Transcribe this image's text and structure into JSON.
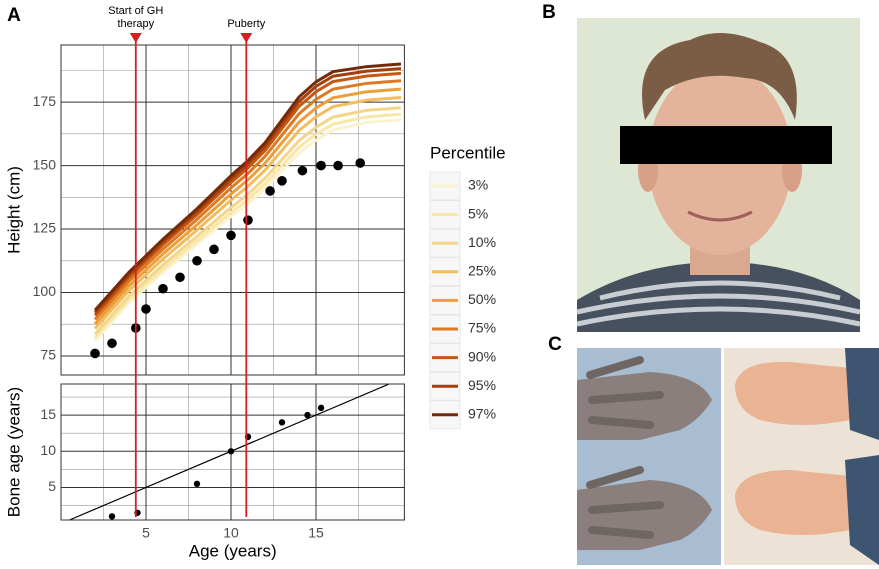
{
  "panel_labels": [
    "A",
    "B",
    "C"
  ],
  "chart_data": [
    {
      "type": "line",
      "ylabel": "Height (cm)",
      "xlim": [
        0,
        20.2
      ],
      "ylim": [
        67.5,
        197.5
      ],
      "xticks": [
        5,
        10,
        15
      ],
      "yticks": [
        75,
        100,
        125,
        150,
        175
      ],
      "grid": true,
      "legend": {
        "title": "Percentile",
        "position": "right"
      },
      "x": [
        2,
        4,
        6,
        8,
        10,
        11,
        12,
        13,
        14,
        15,
        16,
        18,
        20
      ],
      "series": [
        {
          "name": "3%",
          "color": "#fbf3cf",
          "values": [
            81,
            96,
            108,
            119,
            130,
            135,
            141,
            148,
            155,
            160,
            164,
            167,
            168
          ]
        },
        {
          "name": "5%",
          "color": "#f8e7a6",
          "values": [
            82.2,
            97.2,
            109.3,
            120.4,
            131.6,
            136.7,
            142.8,
            150,
            157.2,
            162.3,
            166.3,
            169.2,
            170.2
          ]
        },
        {
          "name": "10%",
          "color": "#f4d68a",
          "values": [
            83.6,
            98.6,
            110.9,
            122.1,
            133.5,
            138.7,
            145,
            152.4,
            159.8,
            165.1,
            169.1,
            171.8,
            172.8
          ]
        },
        {
          "name": "25%",
          "color": "#f3bd5e",
          "values": [
            85.8,
            100.8,
            113.2,
            124.6,
            136.4,
            141.8,
            148.2,
            156,
            163.8,
            169.2,
            173.2,
            175.8,
            176.8
          ]
        },
        {
          "name": "50%",
          "color": "#ec9e3a",
          "values": [
            87.6,
            102.6,
            115.2,
            126.7,
            138.8,
            144.4,
            150.9,
            159,
            167.1,
            172.7,
            176.7,
            179.1,
            180.1
          ]
        },
        {
          "name": "75%",
          "color": "#df7a22",
          "values": [
            89.4,
            104.4,
            117.1,
            128.8,
            141.2,
            146.9,
            153.6,
            162,
            170.4,
            176.1,
            180.1,
            182.4,
            183.4
          ]
        },
        {
          "name": "90%",
          "color": "#c65912",
          "values": [
            91,
            106,
            118.8,
            130.6,
            143.3,
            149.1,
            155.9,
            164.6,
            173.3,
            179.1,
            183.1,
            185.3,
            186.3
          ]
        },
        {
          "name": "95%",
          "color": "#a3400c",
          "values": [
            92,
            107,
            120,
            131.9,
            144.7,
            150.6,
            157.6,
            166.4,
            175.2,
            181.2,
            185.2,
            187.2,
            188.2
          ]
        },
        {
          "name": "97%",
          "color": "#742a08",
          "values": [
            93,
            108,
            121,
            133,
            146,
            152,
            159,
            168,
            177,
            183,
            187,
            189,
            190
          ]
        }
      ],
      "points": {
        "color": "#000000",
        "x": [
          2,
          3,
          4.4,
          5,
          6,
          7,
          8,
          9,
          10,
          11,
          12.3,
          13,
          14.2,
          15.3,
          16.3,
          17.6
        ],
        "values": [
          76,
          80,
          86,
          93.5,
          101.5,
          106,
          112.5,
          117,
          122.5,
          128.5,
          140,
          144,
          148,
          150,
          150,
          151
        ]
      },
      "annotations": [
        {
          "label": "Start of GH therapy",
          "x": 4.4,
          "color": "#d42020"
        },
        {
          "label": "Puberty",
          "x": 10.9,
          "color": "#d42020"
        }
      ]
    },
    {
      "type": "scatter",
      "xlabel": "Age (years)",
      "ylabel": "Bone age (years)",
      "xlim": [
        0,
        20.2
      ],
      "ylim": [
        0.5,
        19.3
      ],
      "xticks": [
        5,
        10,
        15
      ],
      "yticks": [
        5,
        10,
        15
      ],
      "grid": true,
      "identity_line": true,
      "points": {
        "color": "#000000",
        "x": [
          3,
          4.5,
          8,
          10,
          11,
          13,
          14.5,
          15.3
        ],
        "values": [
          1,
          1.5,
          5.5,
          10,
          12,
          14,
          15,
          16
        ]
      }
    }
  ]
}
